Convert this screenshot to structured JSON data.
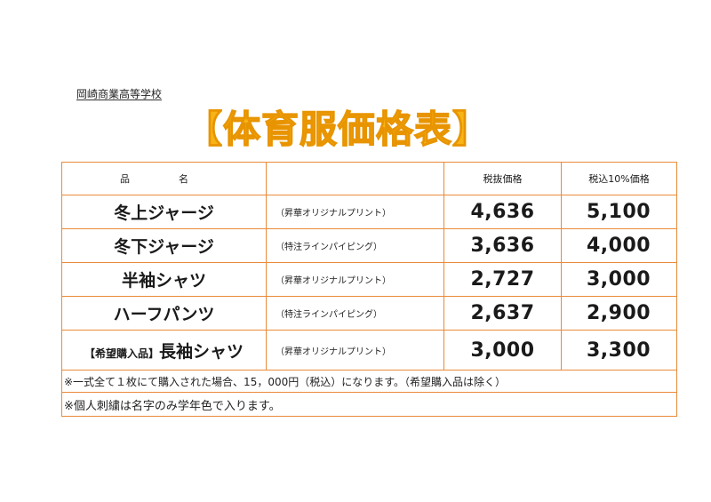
{
  "school_name": "岡崎商業高等学校",
  "title": "【体育服価格表】",
  "table": {
    "headers": {
      "item": "品　名",
      "desc": "",
      "price_ex": "税抜価格",
      "price_in": "税込10%価格"
    },
    "rows": [
      {
        "tag": "",
        "name": "冬上ジャージ",
        "desc": "（昇華オリジナルプリント）",
        "price_ex": "4,636",
        "price_in": "5,100"
      },
      {
        "tag": "",
        "name": "冬下ジャージ",
        "desc": "（特注ラインパイピング）",
        "price_ex": "3,636",
        "price_in": "4,000"
      },
      {
        "tag": "",
        "name": "半袖シャツ",
        "desc": "（昇華オリジナルプリント）",
        "price_ex": "2,727",
        "price_in": "3,000"
      },
      {
        "tag": "",
        "name": "ハーフパンツ",
        "desc": "（特注ラインパイピング）",
        "price_ex": "2,637",
        "price_in": "2,900"
      },
      {
        "tag": "【希望購入品】",
        "name": "長袖シャツ",
        "desc": "（昇華オリジナルプリント）",
        "price_ex": "3,000",
        "price_in": "3,300"
      }
    ],
    "notes": [
      "※一式全て１枚にて購入された場合、15，000円（税込）になります。（希望購入品は除く）",
      "※個人刺繍は名字のみ学年色で入ります。"
    ]
  },
  "colors": {
    "title": "#f8b416",
    "border": "#ea8a3a"
  }
}
